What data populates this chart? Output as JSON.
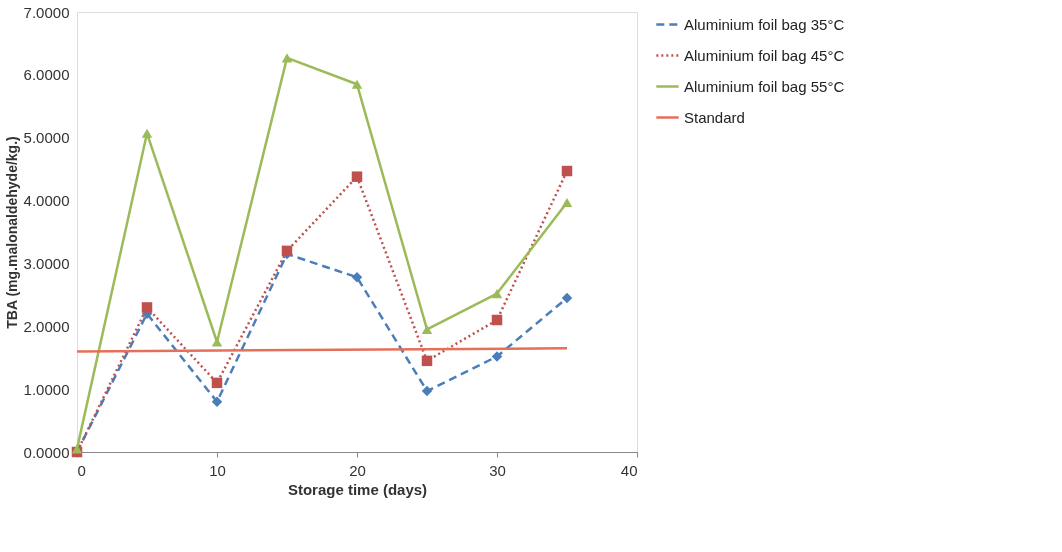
{
  "chart_data": {
    "type": "line",
    "xlabel": "Storage time (days)",
    "ylabel": "TBA (mg.malonaldehyde/kg.)",
    "xlim": [
      0,
      40
    ],
    "xticks": [
      0,
      10,
      20,
      30,
      40
    ],
    "ylim": [
      0,
      7
    ],
    "yticks": [
      {
        "value": 0,
        "label": "0.0000"
      },
      {
        "value": 1,
        "label": "1.0000"
      },
      {
        "value": 2,
        "label": "2.0000"
      },
      {
        "value": 3,
        "label": "3.0000"
      },
      {
        "value": 4,
        "label": "4.0000"
      },
      {
        "value": 5,
        "label": "5.0000"
      },
      {
        "value": 6,
        "label": "6.0000"
      },
      {
        "value": 7,
        "label": "7.0000"
      }
    ],
    "grid": false,
    "legend": "right",
    "series": [
      {
        "name": "Aluminium foil bag 35°C",
        "color": "#4a7ebb",
        "marker": "diamond",
        "line_style": "dashed",
        "x": [
          0,
          5,
          10,
          15,
          20,
          25,
          30,
          35
        ],
        "values": [
          0,
          2.2,
          0.8,
          3.15,
          2.78,
          0.97,
          1.52,
          2.45
        ]
      },
      {
        "name": "Aluminium foil bag 45°C",
        "color": "#c0504d",
        "marker": "square",
        "line_style": "dotted",
        "x": [
          0,
          5,
          10,
          15,
          20,
          25,
          30,
          35
        ],
        "values": [
          0,
          2.3,
          1.1,
          3.2,
          4.38,
          1.45,
          2.1,
          4.47
        ]
      },
      {
        "name": "Aluminium foil bag 55°C",
        "color": "#9bbb59",
        "marker": "triangle",
        "line_style": "solid",
        "x": [
          0,
          5,
          10,
          15,
          20,
          25,
          30,
          35
        ],
        "values": [
          0.05,
          5.07,
          1.75,
          6.27,
          5.85,
          1.95,
          2.52,
          3.97
        ]
      },
      {
        "name": "Standard",
        "color": "#e4705a",
        "marker": "none",
        "line_style": "solid",
        "x": [
          0,
          35
        ],
        "values": [
          1.6,
          1.65
        ]
      }
    ]
  }
}
